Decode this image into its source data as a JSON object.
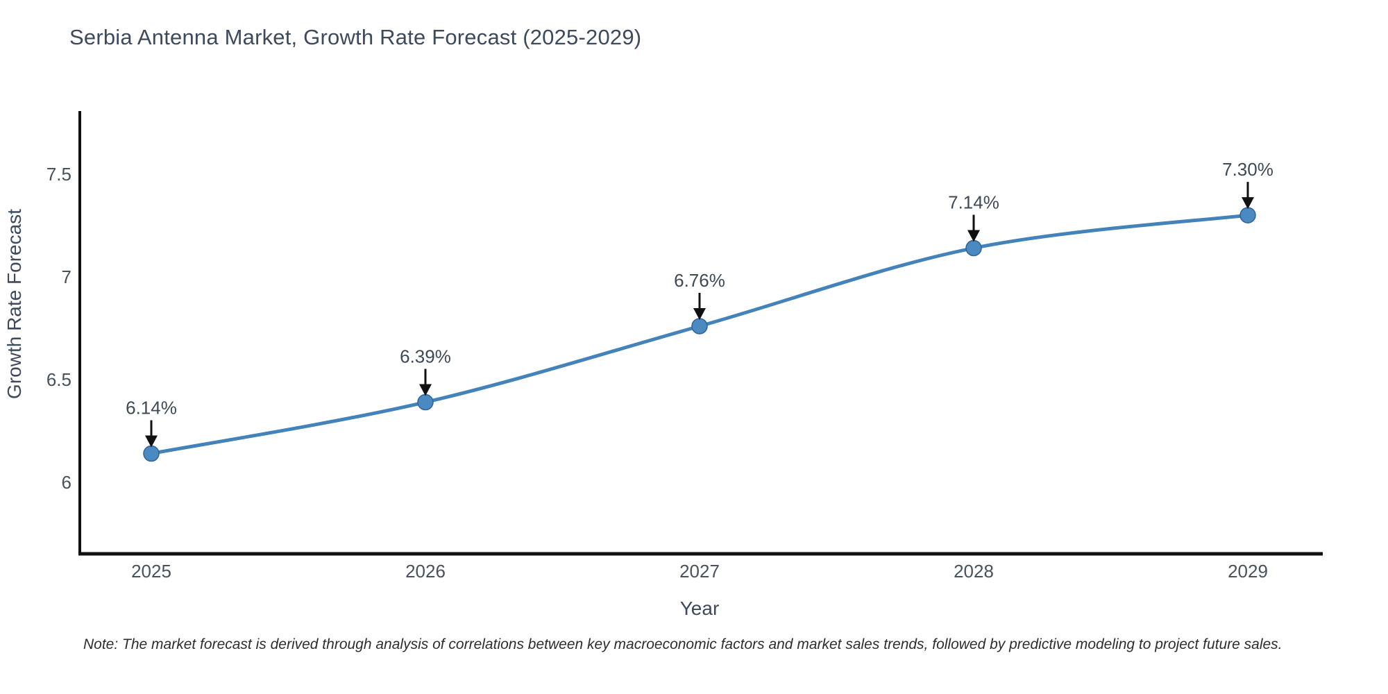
{
  "title": "Serbia Antenna Market, Growth Rate Forecast (2025-2029)",
  "note": "Note: The market forecast is derived through analysis of correlations between key macroeconomic factors and market sales trends, followed by predictive modeling to project future sales.",
  "chart_data": {
    "type": "line",
    "title": "Serbia Antenna Market, Growth Rate Forecast (2025-2029)",
    "xlabel": "Year",
    "ylabel": "Growth Rate Forecast",
    "categories": [
      "2025",
      "2026",
      "2027",
      "2028",
      "2029"
    ],
    "values": [
      6.14,
      6.39,
      6.76,
      7.14,
      7.3
    ],
    "point_labels": [
      "6.14%",
      "6.39%",
      "6.76%",
      "7.14%",
      "7.30%"
    ],
    "y_ticks": [
      {
        "value": 6,
        "label": "6"
      },
      {
        "value": 6.5,
        "label": "6.5"
      },
      {
        "value": 7,
        "label": "7"
      },
      {
        "value": 7.5,
        "label": "7.5"
      }
    ],
    "ylim": [
      5.652,
      7.807
    ],
    "grid": false,
    "legend_position": "none",
    "line_shape": "spline",
    "colors": {
      "line": "#4383ba",
      "marker_fill": "#4a8ac1",
      "marker_edge": "#2f6298",
      "axis": "#111111",
      "tick_text": "#47525c",
      "axis_title_text": "#3d4a5c",
      "annotation_text": "#3d4a56",
      "annotation_arrow": "#111111"
    }
  }
}
